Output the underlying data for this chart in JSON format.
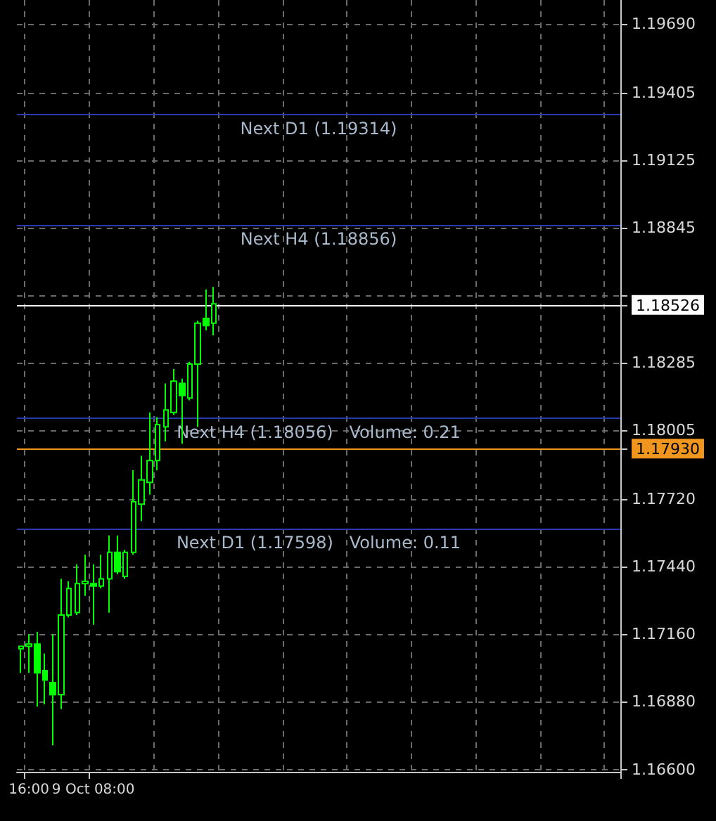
{
  "chart_data": {
    "type": "candlestick",
    "color": "#00ff00",
    "categories": [
      null,
      "16:00",
      null,
      null,
      null,
      null,
      null,
      null,
      null,
      "9 Oct 08:00",
      null,
      null,
      null,
      null,
      null,
      null,
      null,
      null,
      null,
      null,
      null,
      null,
      null,
      null,
      null,
      null,
      null,
      null,
      null,
      null,
      null,
      null,
      null,
      null,
      null,
      null,
      null,
      null,
      null,
      null,
      null,
      null,
      null,
      null,
      null,
      null,
      null,
      null,
      null,
      null,
      null,
      null,
      null,
      null,
      null,
      null,
      null,
      null,
      null,
      null,
      null,
      null,
      null,
      null,
      null,
      null,
      null,
      null,
      null,
      null,
      null,
      null,
      null,
      null,
      null
    ],
    "ohlc": [
      [
        1.171,
        1.1711,
        1.17,
        1.1711
      ],
      [
        1.1711,
        1.1716,
        1.17,
        1.1712
      ],
      [
        1.1712,
        1.1717,
        1.1686,
        1.17
      ],
      [
        1.1701,
        1.1708,
        1.1687,
        1.1697
      ],
      [
        1.1696,
        1.1716,
        1.167,
        1.1691
      ],
      [
        1.1691,
        1.1739,
        1.1685,
        1.1724
      ],
      [
        1.1724,
        1.1738,
        1.1723,
        1.1735
      ],
      [
        1.1725,
        1.1745,
        1.1724,
        1.1737
      ],
      [
        1.1737,
        1.1749,
        1.1732,
        1.1738
      ],
      [
        1.1737,
        1.1745,
        1.172,
        1.1736
      ],
      [
        1.1736,
        1.1749,
        1.1735,
        1.1739
      ],
      [
        1.1739,
        1.1757,
        1.1725,
        1.175
      ],
      [
        1.175,
        1.1757,
        1.1741,
        1.1742
      ],
      [
        1.174,
        1.1751,
        1.1739,
        1.175
      ],
      [
        1.175,
        1.1784,
        1.1749,
        1.1771
      ],
      [
        1.177,
        1.179,
        1.1763,
        1.178
      ],
      [
        1.1779,
        1.1808,
        1.1774,
        1.1788
      ],
      [
        1.1788,
        1.1806,
        1.1784,
        1.1803
      ],
      [
        1.1802,
        1.182,
        1.1796,
        1.1809
      ],
      [
        1.1808,
        1.1826,
        1.1807,
        1.1821
      ],
      [
        1.182,
        1.1822,
        1.1795,
        1.1815
      ],
      [
        1.1814,
        1.1829,
        1.1813,
        1.1828
      ],
      [
        1.1828,
        1.1846,
        1.1802,
        1.1845
      ],
      [
        1.1847,
        1.1859,
        1.1842,
        1.1844
      ],
      [
        1.1845,
        1.186,
        1.184,
        1.1853
      ],
      null,
      null,
      null,
      null,
      null,
      null,
      null,
      null,
      null,
      null,
      null,
      null,
      null,
      null,
      null,
      null,
      null,
      null,
      null,
      null,
      null,
      null,
      null,
      null,
      null,
      null,
      null,
      null,
      null,
      null,
      null,
      null,
      null,
      null,
      null,
      null,
      null,
      null,
      null,
      null,
      null,
      null,
      null,
      null,
      null,
      null,
      null,
      null,
      null,
      null
    ],
    "ylim": [
      1.1659,
      1.1979
    ],
    "yticks": [
      {
        "value": 1.166,
        "label": "1.16600"
      },
      {
        "value": 1.1688,
        "label": "1.16880"
      },
      {
        "value": 1.1716,
        "label": "1.17160"
      },
      {
        "value": 1.1744,
        "label": "1.17440"
      },
      {
        "value": 1.1772,
        "label": "1.17720"
      },
      {
        "value": 1.1793,
        "label": "1.17930"
      },
      {
        "value": 1.18005,
        "label": "1.18005"
      },
      {
        "value": 1.18285,
        "label": "1.18285"
      },
      {
        "value": 1.18526,
        "label": "1.18526"
      },
      {
        "value": 1.18565,
        "label": null
      },
      {
        "value": 1.18845,
        "label": "1.18845"
      },
      {
        "value": 1.19125,
        "label": "1.19125"
      },
      {
        "value": 1.19405,
        "label": "1.19405"
      },
      {
        "value": 1.1969,
        "label": "1.19690"
      }
    ],
    "ref_lines": [
      {
        "axis": "y",
        "value": 1.19314,
        "label": "Next D1 (1.19314)",
        "color": "#2a3aa8"
      },
      {
        "axis": "y",
        "value": 1.18856,
        "label": "Next H4 (1.18856)",
        "color": "#2a3aa8"
      },
      {
        "axis": "y",
        "value": 1.18526,
        "color": "#ffffff"
      },
      {
        "axis": "y",
        "value": 1.18056,
        "label": "Next H4 (1.18056)   Volume: 0.21",
        "color": "#2a3aa8"
      },
      {
        "axis": "y",
        "value": 1.1793,
        "color": "#f0961e"
      },
      {
        "axis": "y",
        "value": 1.17598,
        "label": "Next D1 (1.17598)   Volume: 0.11",
        "color": "#2a3aa8"
      }
    ],
    "grid": true
  }
}
